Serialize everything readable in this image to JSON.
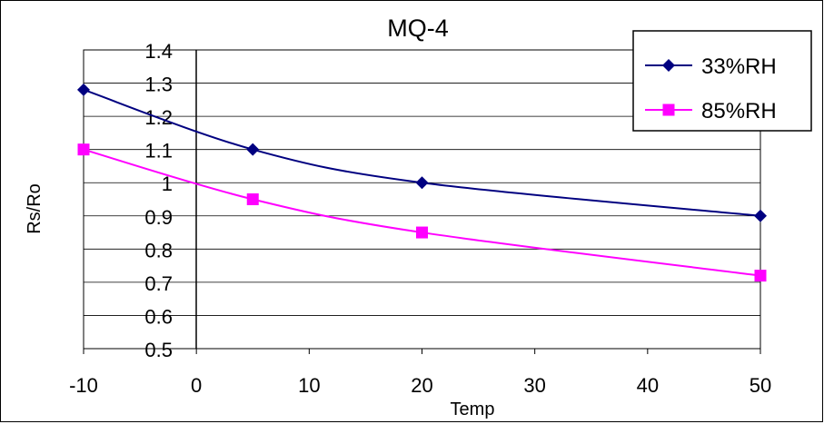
{
  "chart_data": {
    "type": "line",
    "title": "MQ-4",
    "xlabel": "Temp",
    "ylabel": "Rs/Ro",
    "xlim": [
      -10,
      50
    ],
    "ylim": [
      0.5,
      1.4
    ],
    "x_ticks": [
      "-10",
      "0",
      "10",
      "20",
      "30",
      "40",
      "50"
    ],
    "y_ticks": [
      "0.5",
      "0.6",
      "0.7",
      "0.8",
      "0.9",
      "1",
      "1.1",
      "1.2",
      "1.3",
      "1.4"
    ],
    "grid": "horizontal",
    "legend_position": "top-right",
    "series": [
      {
        "name": "33%RH",
        "color": "#000080",
        "marker": "diamond",
        "x": [
          -10,
          5,
          20,
          50
        ],
        "y": [
          1.28,
          1.1,
          1.0,
          0.9
        ]
      },
      {
        "name": "85%RH",
        "color": "#ff00ff",
        "marker": "square",
        "x": [
          -10,
          5,
          20,
          50
        ],
        "y": [
          1.1,
          0.95,
          0.85,
          0.72
        ]
      }
    ]
  }
}
